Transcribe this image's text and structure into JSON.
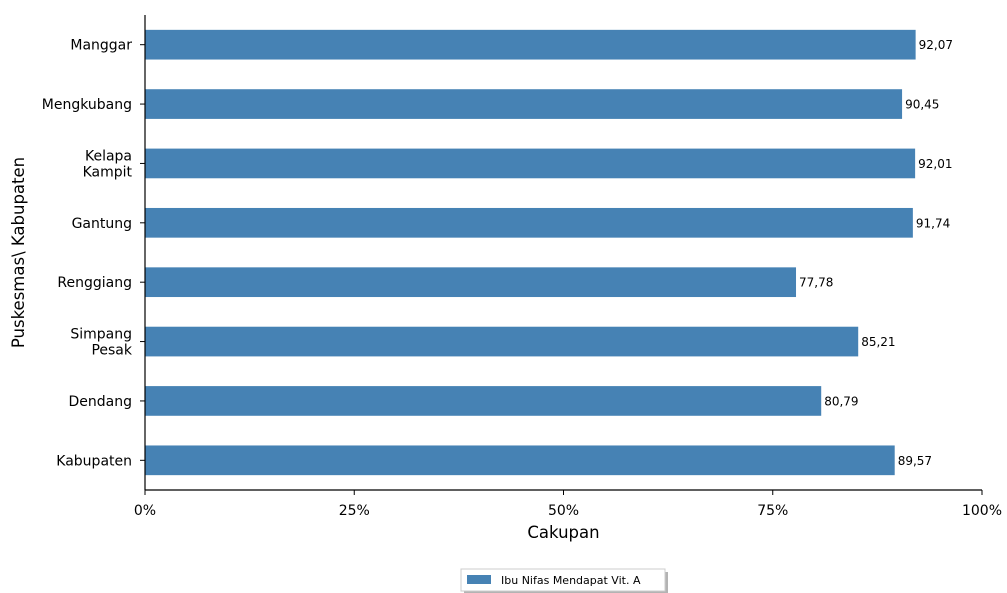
{
  "chart_data": {
    "type": "bar",
    "orientation": "horizontal",
    "title": "",
    "xlabel": "Cakupan",
    "ylabel": "Puskesmas\\ Kabupaten",
    "categories": [
      [
        "Manggar"
      ],
      [
        "Mengkubang"
      ],
      [
        "Kelapa",
        "Kampit"
      ],
      [
        "Gantung"
      ],
      [
        "Renggiang"
      ],
      [
        "Simpang",
        "Pesak"
      ],
      [
        "Dendang"
      ],
      [
        "Kabupaten"
      ]
    ],
    "series": [
      {
        "name": "Ibu Nifas Mendapat Vit. A",
        "color": "#4682b4",
        "values": [
          92.07,
          90.45,
          92.01,
          91.74,
          77.78,
          85.21,
          80.79,
          89.57
        ],
        "labels": [
          "92,07",
          "90,45",
          "92,01",
          "91,74",
          "77,78",
          "85,21",
          "80,79",
          "89,57"
        ]
      }
    ],
    "xlim": [
      0,
      100
    ],
    "xticks": [
      0,
      25,
      50,
      75,
      100
    ],
    "xtick_labels": [
      "0%",
      "25%",
      "50%",
      "75%",
      "100%"
    ],
    "grid": false,
    "legend_placement": "bottom-center"
  }
}
